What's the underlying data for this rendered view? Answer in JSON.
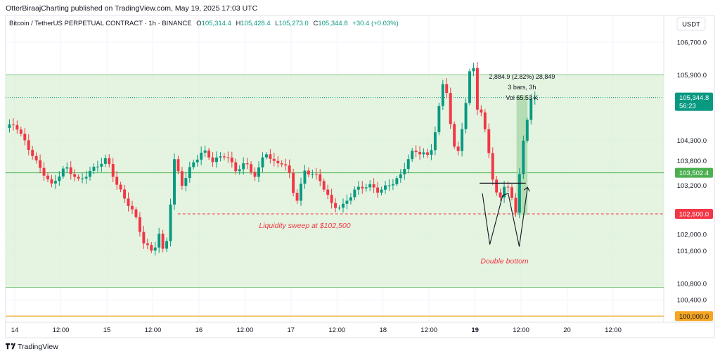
{
  "header": {
    "published": "OtterBiraajCharting published on TradingView.com, May 19, 2025 17:03 UTC"
  },
  "footer": {
    "brand": "TradingView"
  },
  "chart_data": {
    "type": "candlestick",
    "symbol_line": {
      "name": "Bitcoin / TetherUS PERPETUAL CONTRACT · 1h · BINANCE",
      "o_label": "O",
      "o": "105,314.4",
      "h_label": "H",
      "h": "105,428.4",
      "l_label": "L",
      "l": "105,273.0",
      "c_label": "C",
      "c": "105,344.8",
      "chg": "+30.4 (+0.03%)"
    },
    "currency": "USDT",
    "y_ticks": [
      {
        "value": 106700,
        "label": "106,700.0"
      },
      {
        "value": 105900,
        "label": "105,900.0"
      },
      {
        "value": 104300,
        "label": "104,300.0"
      },
      {
        "value": 103800,
        "label": "103,800.0"
      },
      {
        "value": 103200,
        "label": "103,200.0"
      },
      {
        "value": 102000,
        "label": "102,000.0"
      },
      {
        "value": 101600,
        "label": "101,600.0"
      },
      {
        "value": 100800,
        "label": "100,800.0"
      },
      {
        "value": 100400,
        "label": "100,400.0"
      }
    ],
    "x_ticks": [
      {
        "day": 14.0,
        "label": "14"
      },
      {
        "day": 14.5,
        "label": "12:00"
      },
      {
        "day": 15.0,
        "label": "15"
      },
      {
        "day": 15.5,
        "label": "12:00"
      },
      {
        "day": 16.0,
        "label": "16"
      },
      {
        "day": 16.5,
        "label": "12:00"
      },
      {
        "day": 17.0,
        "label": "17"
      },
      {
        "day": 17.5,
        "label": "12:00"
      },
      {
        "day": 18.0,
        "label": "18"
      },
      {
        "day": 18.5,
        "label": "12:00"
      },
      {
        "day": 19.0,
        "label": "19"
      },
      {
        "day": 19.5,
        "label": "12:00"
      },
      {
        "day": 20.0,
        "label": "20"
      },
      {
        "day": 20.5,
        "label": "12:00"
      }
    ],
    "x_range": [
      13.9,
      21.05
    ],
    "y_range": [
      99850,
      107350
    ],
    "price_tags": [
      {
        "value": 103502.4,
        "label": "103,502.4",
        "color": "#4caf50"
      },
      {
        "value": 102500.0,
        "label": "102,500.0",
        "color": "#f23645"
      },
      {
        "value": 100000.0,
        "label": "100,000.0",
        "color": "#f5a623"
      }
    ],
    "last_price": {
      "value": 105344.8,
      "label": "105,344.8",
      "countdown": "56:23",
      "color": "#089981"
    },
    "range_box": {
      "top": 105900,
      "bottom": 100700,
      "color": "#d8f0d3"
    },
    "support_line": {
      "value": 103502.4,
      "color": "#4caf50"
    },
    "sweep_line": {
      "value": 102500,
      "from_day": 15.77,
      "color": "#f23645"
    },
    "orange_line": {
      "value": 100000,
      "color": "#f5a623"
    },
    "neckline": {
      "value": 103250,
      "from_day": 19.05,
      "to_day": 19.55
    },
    "double_bottom_path": [
      [
        19.08,
        103000
      ],
      [
        19.16,
        101750
      ],
      [
        19.3,
        102950
      ],
      [
        19.36,
        103000
      ],
      [
        19.48,
        101700
      ],
      [
        19.57,
        103150
      ]
    ],
    "measure_box": {
      "from_day": 19.45,
      "to_day": 19.57,
      "low": 102470,
      "high": 105400,
      "color": "#a5d6a7"
    },
    "annotations": {
      "sweep": "Liquidity sweep at $102,500",
      "double_bottom": "Double bottom",
      "measure_1": "2,884.9 (2.82%) 28,849",
      "measure_2": "3 bars, 3h",
      "measure_3": "Vol 65.53 K"
    },
    "colors": {
      "up": "#089981",
      "down": "#f23645",
      "grid": "#f0f3fa"
    },
    "keypoints": [
      [
        13.9,
        104600
      ],
      [
        14.0,
        104700
      ],
      [
        14.1,
        104300
      ],
      [
        14.25,
        103700
      ],
      [
        14.4,
        103200
      ],
      [
        14.55,
        103650
      ],
      [
        14.7,
        103300
      ],
      [
        14.85,
        103600
      ],
      [
        15.0,
        103850
      ],
      [
        15.1,
        103250
      ],
      [
        15.2,
        102850
      ],
      [
        15.3,
        102500
      ],
      [
        15.4,
        101800
      ],
      [
        15.5,
        101550
      ],
      [
        15.58,
        102100
      ],
      [
        15.62,
        101400
      ],
      [
        15.68,
        102300
      ],
      [
        15.72,
        103900
      ],
      [
        15.82,
        103200
      ],
      [
        15.92,
        103700
      ],
      [
        16.05,
        104050
      ],
      [
        16.15,
        103800
      ],
      [
        16.3,
        103950
      ],
      [
        16.4,
        103550
      ],
      [
        16.5,
        103750
      ],
      [
        16.62,
        103400
      ],
      [
        16.72,
        104050
      ],
      [
        16.8,
        103750
      ],
      [
        16.92,
        103750
      ],
      [
        17.0,
        103400
      ],
      [
        17.05,
        102700
      ],
      [
        17.15,
        103550
      ],
      [
        17.3,
        103400
      ],
      [
        17.45,
        102700
      ],
      [
        17.55,
        102650
      ],
      [
        17.7,
        103100
      ],
      [
        17.85,
        103200
      ],
      [
        17.95,
        103050
      ],
      [
        18.1,
        103250
      ],
      [
        18.2,
        103450
      ],
      [
        18.3,
        104000
      ],
      [
        18.45,
        104000
      ],
      [
        18.5,
        103850
      ],
      [
        18.55,
        104300
      ],
      [
        18.6,
        105000
      ],
      [
        18.67,
        105900
      ],
      [
        18.75,
        104400
      ],
      [
        18.8,
        103800
      ],
      [
        18.9,
        105200
      ],
      [
        18.97,
        106450
      ],
      [
        19.02,
        105100
      ],
      [
        19.08,
        104900
      ],
      [
        19.16,
        103900
      ],
      [
        19.2,
        103200
      ],
      [
        19.26,
        102800
      ],
      [
        19.33,
        103300
      ],
      [
        19.38,
        103000
      ],
      [
        19.45,
        102500
      ],
      [
        19.5,
        104000
      ],
      [
        19.55,
        104500
      ],
      [
        19.6,
        105350
      ],
      [
        19.66,
        105345
      ]
    ]
  }
}
